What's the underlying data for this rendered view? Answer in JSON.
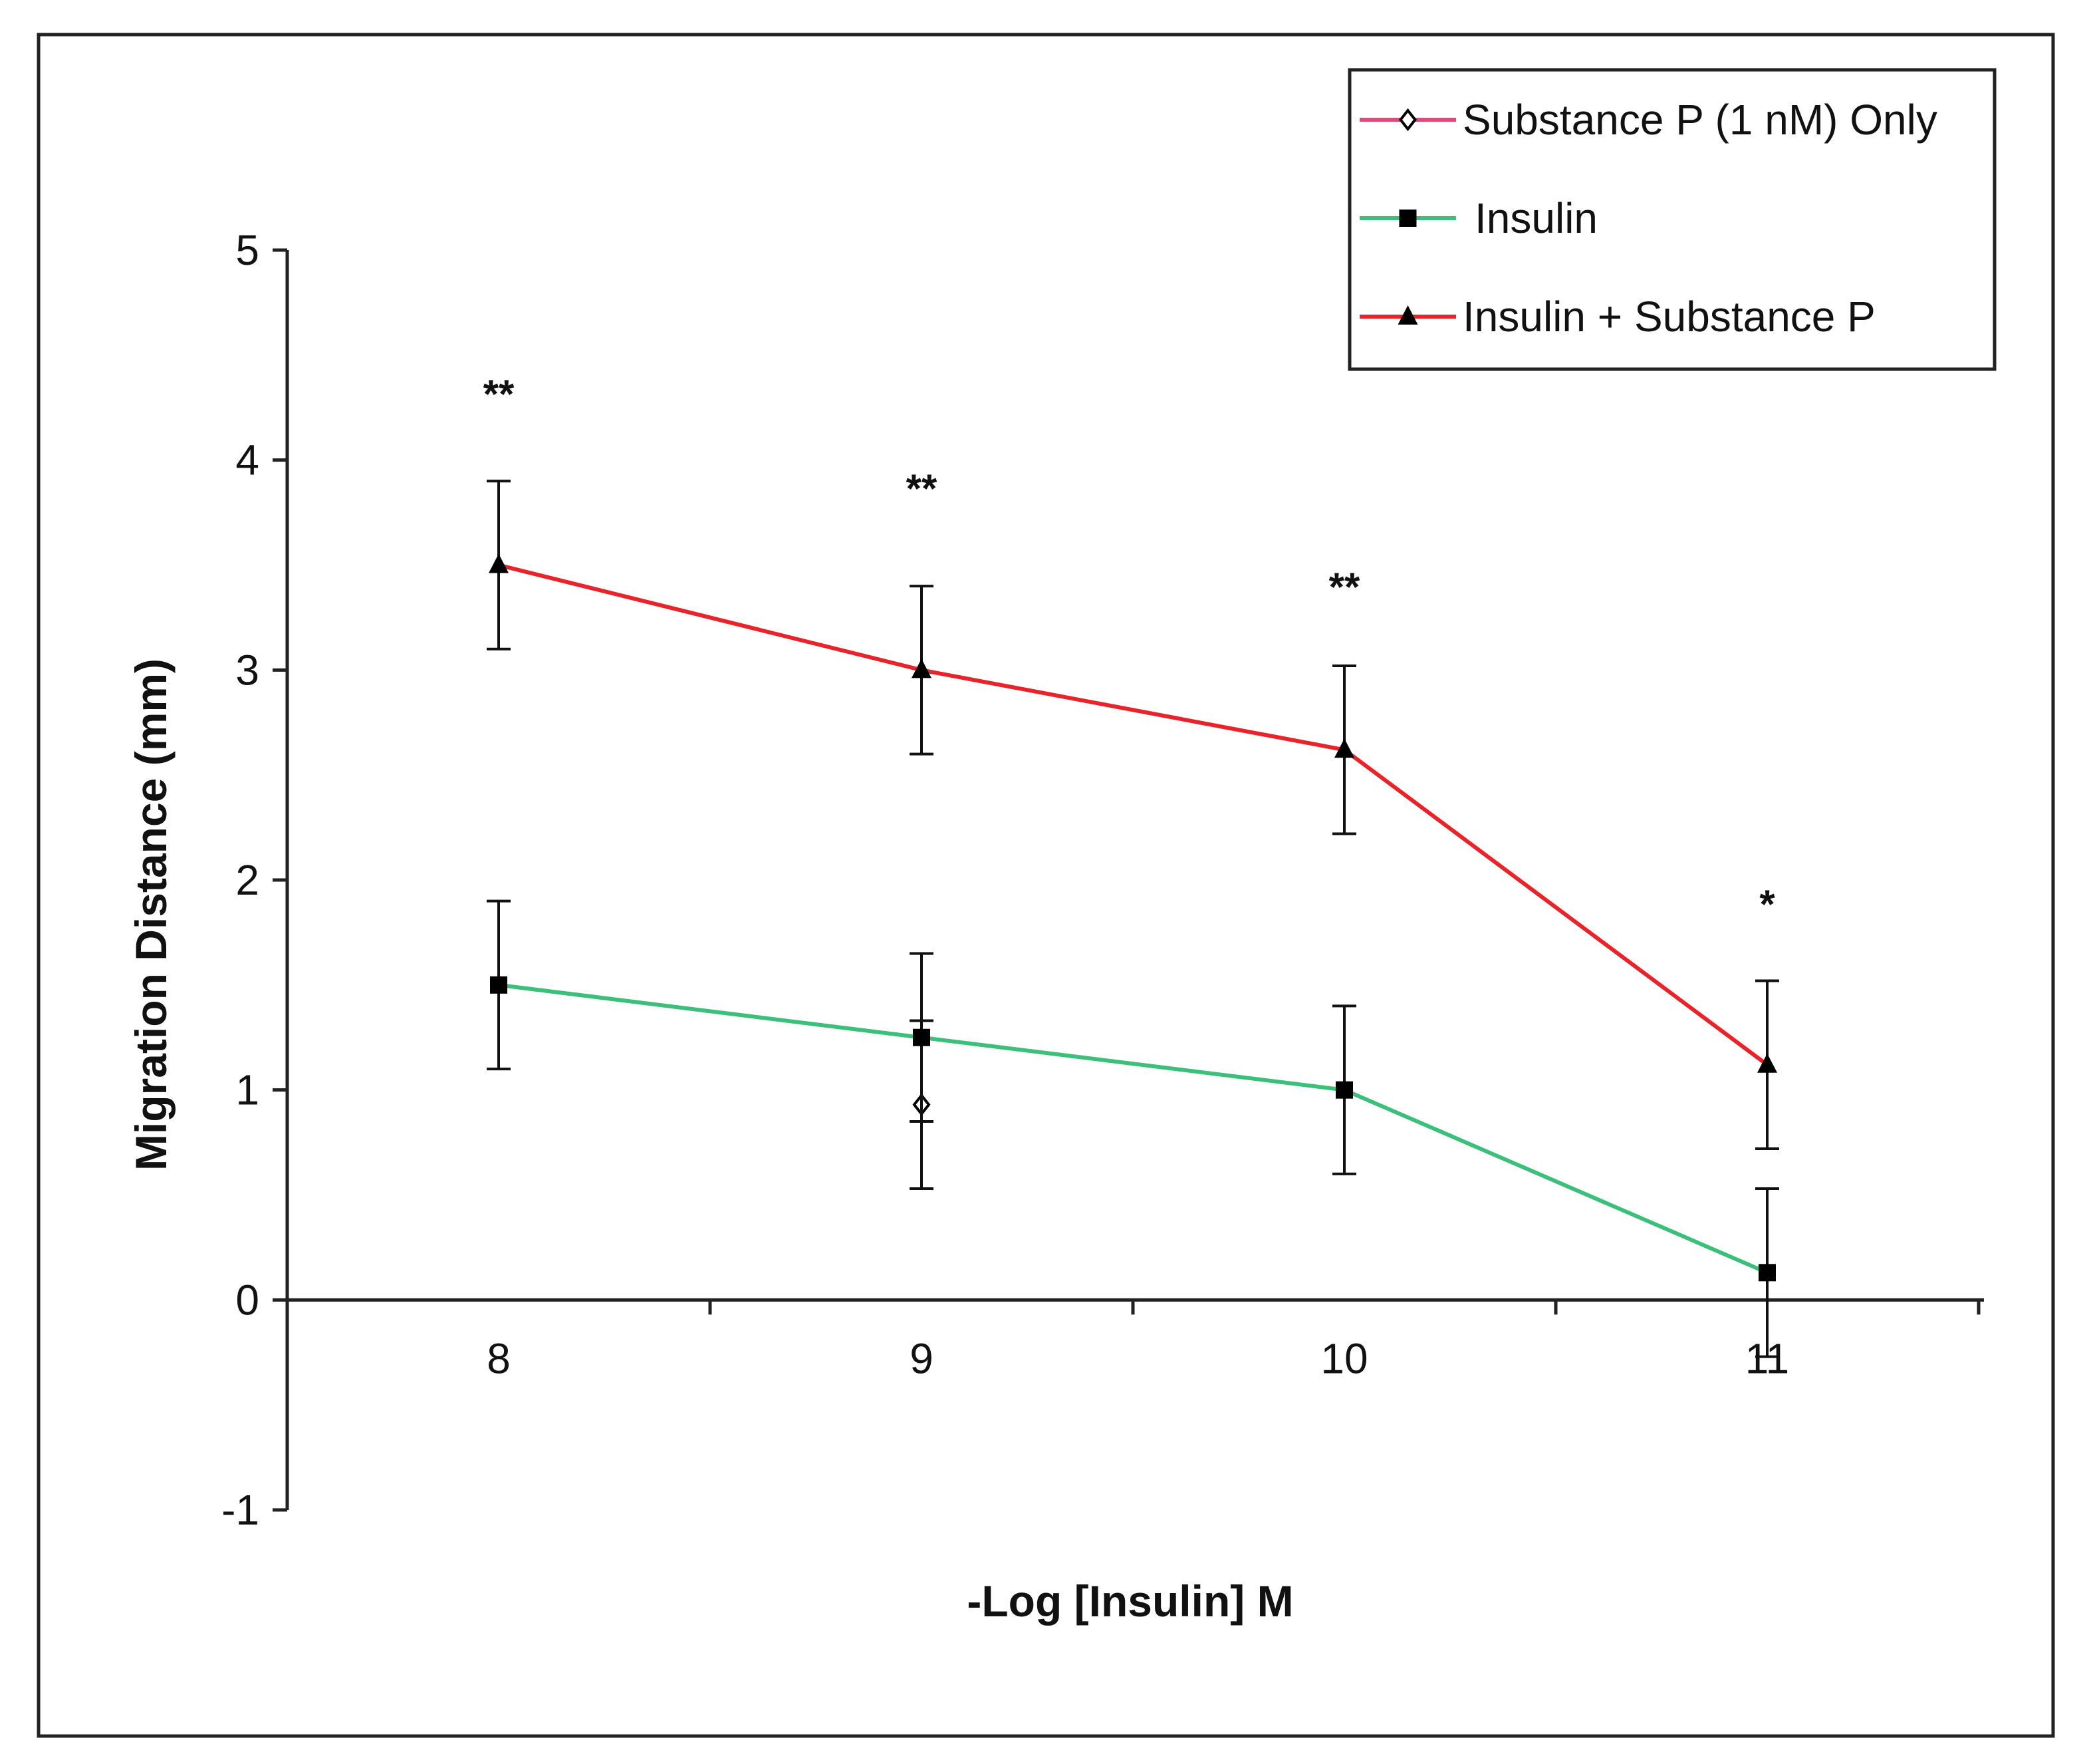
{
  "chart_data": {
    "type": "line",
    "title": "",
    "xlabel": "-Log [Insulin] M",
    "ylabel": "Migration Distance (mm)",
    "x": [
      8,
      9,
      10,
      11
    ],
    "xlim": [
      7.5,
      11.5
    ],
    "ylim": [
      -1,
      5
    ],
    "yticks": [
      "-1",
      "0",
      "1",
      "2",
      "3",
      "4",
      "5"
    ],
    "xticks": [
      "8",
      "9",
      "10",
      "11"
    ],
    "grid": false,
    "legend_position": "top-right",
    "series": [
      {
        "name": "Substance P (1 nM) Only",
        "marker": "open-diamond",
        "color": "#e8457a",
        "x": [
          9
        ],
        "values": [
          0.93
        ],
        "errors": [
          0.4
        ]
      },
      {
        "name": "Insulin",
        "marker": "square",
        "color": "#3cbf7a",
        "x": [
          8,
          9,
          10,
          11
        ],
        "values": [
          1.5,
          1.25,
          1.0,
          0.13
        ],
        "errors": [
          0.4,
          0.4,
          0.4,
          0.4
        ]
      },
      {
        "name": "Insulin + Substance P",
        "marker": "triangle",
        "color": "#e8242a",
        "x": [
          8,
          9,
          10,
          11
        ],
        "values": [
          3.5,
          3.0,
          2.62,
          1.12
        ],
        "errors": [
          0.4,
          0.4,
          0.4,
          0.4
        ]
      }
    ],
    "annotations": [
      {
        "x": 8,
        "y": 4.25,
        "text": "**"
      },
      {
        "x": 9,
        "y": 3.8,
        "text": "**"
      },
      {
        "x": 10,
        "y": 3.33,
        "text": "**"
      },
      {
        "x": 11,
        "y": 1.82,
        "text": "*"
      }
    ]
  }
}
